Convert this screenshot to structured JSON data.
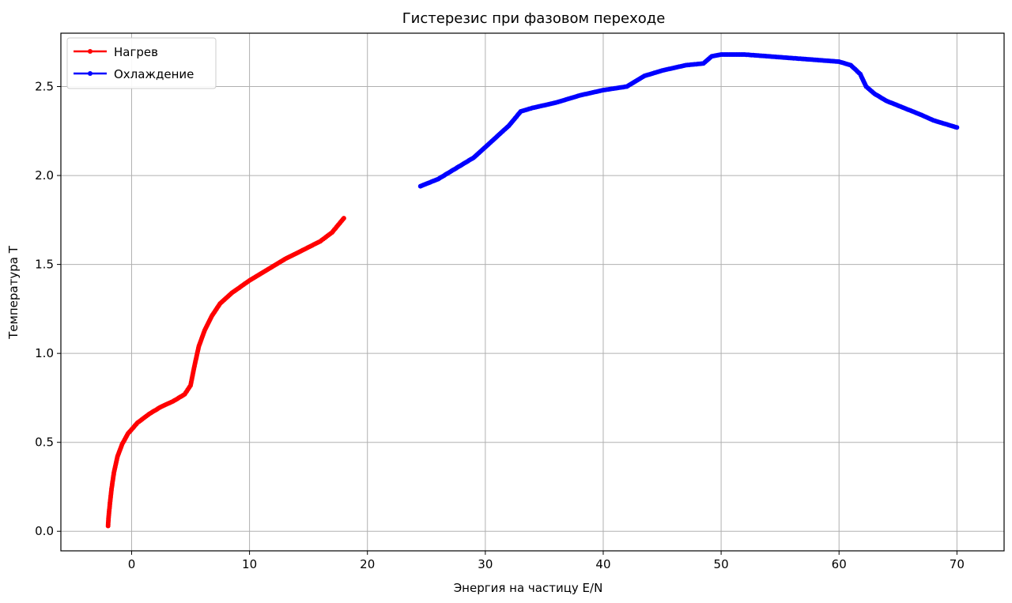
{
  "chart_data": {
    "type": "line",
    "title": "Гистерезис при фазовом переходе",
    "xlabel": "Энергия на частицу E/N",
    "ylabel": "Температура T",
    "xlim": [
      -6,
      74
    ],
    "ylim": [
      -0.11,
      2.8
    ],
    "x_ticks": [
      0,
      10,
      20,
      30,
      40,
      50,
      60,
      70
    ],
    "y_ticks": [
      0.0,
      0.5,
      1.0,
      1.5,
      2.0,
      2.5
    ],
    "grid": true,
    "legend_position": "top-left",
    "series": [
      {
        "name": "Нагрев",
        "color": "#ff0000",
        "marker": "circle",
        "points": [
          [
            -2.0,
            0.03
          ],
          [
            -1.95,
            0.08
          ],
          [
            -1.85,
            0.15
          ],
          [
            -1.7,
            0.24
          ],
          [
            -1.5,
            0.33
          ],
          [
            -1.2,
            0.42
          ],
          [
            -0.8,
            0.49
          ],
          [
            -0.3,
            0.55
          ],
          [
            0.5,
            0.61
          ],
          [
            1.5,
            0.66
          ],
          [
            2.5,
            0.7
          ],
          [
            3.5,
            0.73
          ],
          [
            4.5,
            0.77
          ],
          [
            5.0,
            0.82
          ],
          [
            5.3,
            0.92
          ],
          [
            5.7,
            1.04
          ],
          [
            6.2,
            1.13
          ],
          [
            6.8,
            1.21
          ],
          [
            7.5,
            1.28
          ],
          [
            8.5,
            1.34
          ],
          [
            10.0,
            1.41
          ],
          [
            11.5,
            1.47
          ],
          [
            13.0,
            1.53
          ],
          [
            14.5,
            1.58
          ],
          [
            16.0,
            1.63
          ],
          [
            17.0,
            1.68
          ],
          [
            18.0,
            1.76
          ]
        ]
      },
      {
        "name": "Охлаждение",
        "color": "#0000ff",
        "marker": "circle",
        "points": [
          [
            24.5,
            1.94
          ],
          [
            26.0,
            1.98
          ],
          [
            27.5,
            2.04
          ],
          [
            29.0,
            2.1
          ],
          [
            30.0,
            2.16
          ],
          [
            31.0,
            2.22
          ],
          [
            32.0,
            2.28
          ],
          [
            33.0,
            2.36
          ],
          [
            34.0,
            2.38
          ],
          [
            36.0,
            2.41
          ],
          [
            38.0,
            2.45
          ],
          [
            40.0,
            2.48
          ],
          [
            42.0,
            2.5
          ],
          [
            43.5,
            2.56
          ],
          [
            45.0,
            2.59
          ],
          [
            47.0,
            2.62
          ],
          [
            48.5,
            2.63
          ],
          [
            49.2,
            2.67
          ],
          [
            50.0,
            2.68
          ],
          [
            52.0,
            2.68
          ],
          [
            54.0,
            2.67
          ],
          [
            56.0,
            2.66
          ],
          [
            58.0,
            2.65
          ],
          [
            60.0,
            2.64
          ],
          [
            61.0,
            2.62
          ],
          [
            61.8,
            2.57
          ],
          [
            62.3,
            2.5
          ],
          [
            63.0,
            2.46
          ],
          [
            64.0,
            2.42
          ],
          [
            65.5,
            2.38
          ],
          [
            67.0,
            2.34
          ],
          [
            68.0,
            2.31
          ],
          [
            69.0,
            2.29
          ],
          [
            70.0,
            2.27
          ]
        ]
      }
    ]
  }
}
